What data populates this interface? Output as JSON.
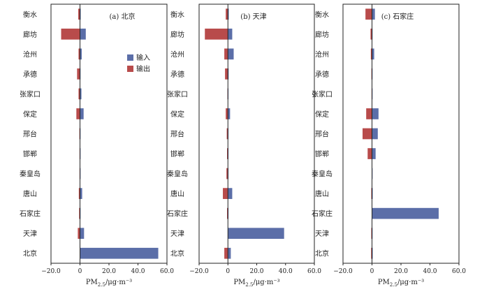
{
  "chart_data": [
    {
      "type": "bar",
      "orientation": "horizontal",
      "title": "(a) 北京",
      "categories": [
        "衡水",
        "廊坊",
        "沧州",
        "承德",
        "张家口",
        "保定",
        "邢台",
        "邯郸",
        "秦皇岛",
        "唐山",
        "石家庄",
        "天津",
        "北京"
      ],
      "series": [
        {
          "name": "输入",
          "color": "#5b6ea8",
          "values": [
            0.5,
            4.0,
            1.2,
            0.3,
            1.0,
            2.5,
            0.2,
            0.3,
            0.2,
            1.5,
            0.4,
            2.8,
            54.0
          ]
        },
        {
          "name": "输出",
          "color": "#b84b4b",
          "values": [
            -1.2,
            -13.0,
            -1.0,
            -2.0,
            -1.0,
            -2.5,
            -0.4,
            -0.3,
            -0.3,
            -0.8,
            -0.6,
            -1.5,
            0
          ]
        }
      ],
      "xlim": [
        -20,
        60
      ],
      "xticks": [
        "−20.0",
        "0",
        "20.0",
        "40.0",
        "60.0"
      ],
      "xlabel": "PM2.5/μg·m⁻³",
      "legend": "top-right"
    },
    {
      "type": "bar",
      "orientation": "horizontal",
      "title": "(b) 天津",
      "categories": [
        "衡水",
        "廊坊",
        "沧州",
        "承德",
        "张家口",
        "保定",
        "邢台",
        "邯郸",
        "秦皇岛",
        "唐山",
        "石家庄",
        "天津",
        "北京"
      ],
      "series": [
        {
          "name": "输入",
          "color": "#5b6ea8",
          "values": [
            0.6,
            3.0,
            4.0,
            0.5,
            0.3,
            1.5,
            0.3,
            0.3,
            0.3,
            3.0,
            0.4,
            39.0,
            2.0
          ]
        },
        {
          "name": "输出",
          "color": "#b84b4b",
          "values": [
            -1.5,
            -16.0,
            -2.5,
            -2.0,
            -0.3,
            -1.5,
            -0.8,
            -0.6,
            -1.0,
            -3.5,
            -0.6,
            0,
            -2.5
          ]
        }
      ],
      "xlim": [
        -20,
        60
      ],
      "xticks": [
        "−20.0",
        "0",
        "20.0",
        "40.0",
        "60.0"
      ],
      "xlabel": "PM2.5/μg·m⁻³"
    },
    {
      "type": "bar",
      "orientation": "horizontal",
      "title": "(c) 石家庄",
      "categories": [
        "衡水",
        "廊坊",
        "沧州",
        "承德",
        "张家口",
        "保定",
        "邢台",
        "邯郸",
        "秦皇岛",
        "唐山",
        "石家庄",
        "天津",
        "北京"
      ],
      "series": [
        {
          "name": "输入",
          "color": "#5b6ea8",
          "values": [
            2.0,
            0.3,
            1.5,
            0.2,
            0.2,
            4.5,
            4.0,
            2.5,
            0.1,
            0.5,
            46.0,
            0.4,
            0.5
          ]
        },
        {
          "name": "输出",
          "color": "#b84b4b",
          "values": [
            -4.5,
            -1.0,
            -0.8,
            -0.4,
            -0.3,
            -4.0,
            -6.5,
            -3.0,
            -0.2,
            -0.5,
            0,
            -0.5,
            -0.6
          ]
        }
      ],
      "xlim": [
        -20,
        60
      ],
      "xticks": [
        "−20.0",
        "0",
        "20.0",
        "40.0",
        "60.0"
      ],
      "xlabel": "PM2.5/μg·m⁻³"
    }
  ],
  "legend": {
    "input_label": "输入",
    "output_label": "输出"
  },
  "axis_label": {
    "pm": "PM",
    "sub": "2.5",
    "unit": "/μg·m⁻³"
  },
  "colors": {
    "input": "#5b6ea8",
    "output": "#b84b4b",
    "axis": "#222222"
  }
}
